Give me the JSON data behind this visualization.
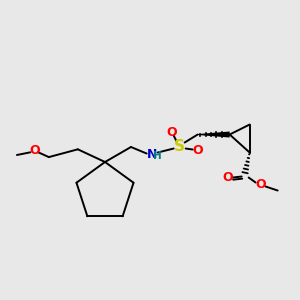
{
  "bg_color": "#e8e8e8",
  "bond_color": "#000000",
  "S_color": "#cccc00",
  "O_color": "#ff0000",
  "N_color": "#0000cc",
  "H_color": "#008080",
  "figsize": [
    3.0,
    3.0
  ],
  "dpi": 100,
  "xlim": [
    0,
    300
  ],
  "ylim": [
    0,
    300
  ]
}
